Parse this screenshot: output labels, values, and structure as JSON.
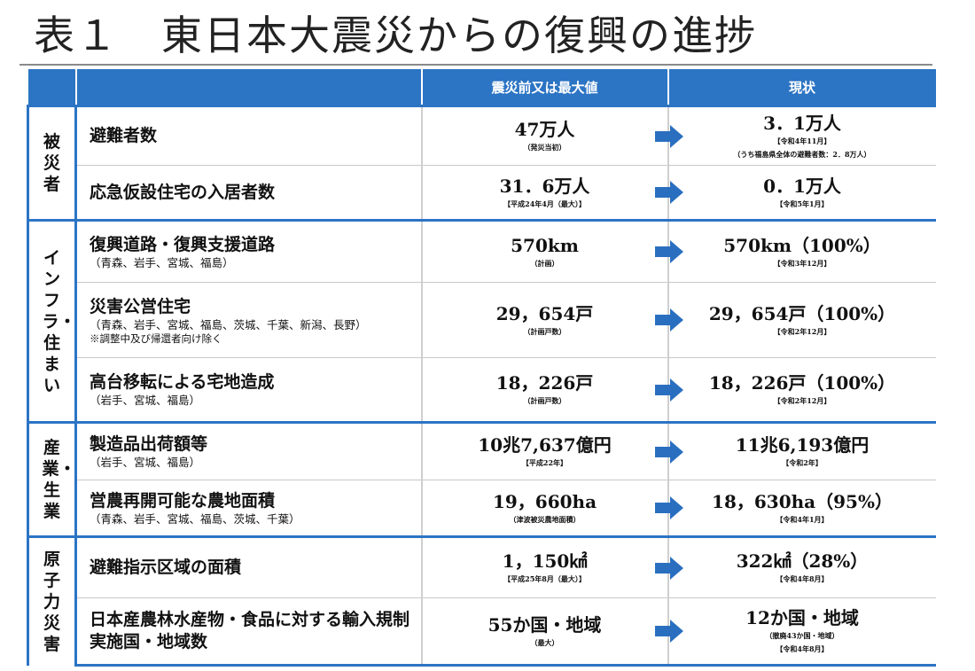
{
  "title": "表１　東日本大震災からの復興の進捗",
  "header": {
    "category": "",
    "item": "",
    "before": "震災前又は最大値",
    "current": "現状"
  },
  "groups": [
    {
      "category": "被災者",
      "rows": [
        {
          "name": "避難者数",
          "sub": "",
          "extra": "",
          "before": "47万人",
          "before_note": "（発災当初）",
          "current": "3．1万人",
          "current_note": "【令和4年11月】",
          "current_note2": "（うち福島県全体の避難者数：2．8万人）"
        },
        {
          "name": "応急仮設住宅の入居者数",
          "sub": "",
          "extra": "",
          "before": "31．6万人",
          "before_note": "【平成24年4月（最大）】",
          "current": "0．1万人",
          "current_note": "【令和5年1月】",
          "current_note2": ""
        }
      ]
    },
    {
      "category": "インフラ・住まい",
      "rows": [
        {
          "name": "復興道路・復興支援道路",
          "sub": "（青森、岩手、宮城、福島）",
          "extra": "",
          "before": "570km",
          "before_note": "（計画）",
          "current": "570km（100%）",
          "current_note": "【令和3年12月】",
          "current_note2": ""
        },
        {
          "name": "災害公営住宅",
          "sub": "（青森、岩手、宮城、福島、茨城、千葉、新潟、長野）",
          "extra": "※調整中及び帰還者向け除く",
          "before": "29，654戸",
          "before_note": "（計画戸数）",
          "current": "29，654戸（100%）",
          "current_note": "【令和2年12月】",
          "current_note2": ""
        },
        {
          "name": "高台移転による宅地造成",
          "sub": "（岩手、宮城、福島）",
          "extra": "",
          "before": "18，226戸",
          "before_note": "（計画戸数）",
          "current": "18，226戸（100%）",
          "current_note": "【令和2年12月】",
          "current_note2": ""
        }
      ]
    },
    {
      "category": "産業・生業",
      "rows": [
        {
          "name": "製造品出荷額等",
          "sub": "（岩手、宮城、福島）",
          "extra": "",
          "before": "10兆7,637億円",
          "before_note": "【平成22年】",
          "current": "11兆6,193億円",
          "current_note": "【令和2年】",
          "current_note2": ""
        },
        {
          "name": "営農再開可能な農地面積",
          "sub": "（青森、岩手、宮城、福島、茨城、千葉）",
          "extra": "",
          "before": "19，660ha",
          "before_note": "（津波被災農地面積）",
          "current": "18，630ha（95%）",
          "current_note": "【令和4年1月】",
          "current_note2": ""
        }
      ]
    },
    {
      "category": "原子力災害",
      "rows": [
        {
          "name": "避難指示区域の面積",
          "sub": "",
          "extra": "",
          "before": "1，150㎢",
          "before_note": "【平成25年8月（最大）】",
          "current": "322㎢（28%）",
          "current_note": "【令和4年8月】",
          "current_note2": ""
        },
        {
          "name": "日本産農林水産物・食品に対する輸入規制実施国・地域数",
          "sub": "",
          "extra": "",
          "before": "55か国・地域",
          "before_note": "（最大）",
          "current": "12か国・地域",
          "current_note": "（撤廃43か国・地域）",
          "current_note2": "【令和4年8月】"
        }
      ]
    }
  ],
  "colors": {
    "accent": "#2c74c4",
    "arrow": "#2a6fbf"
  }
}
